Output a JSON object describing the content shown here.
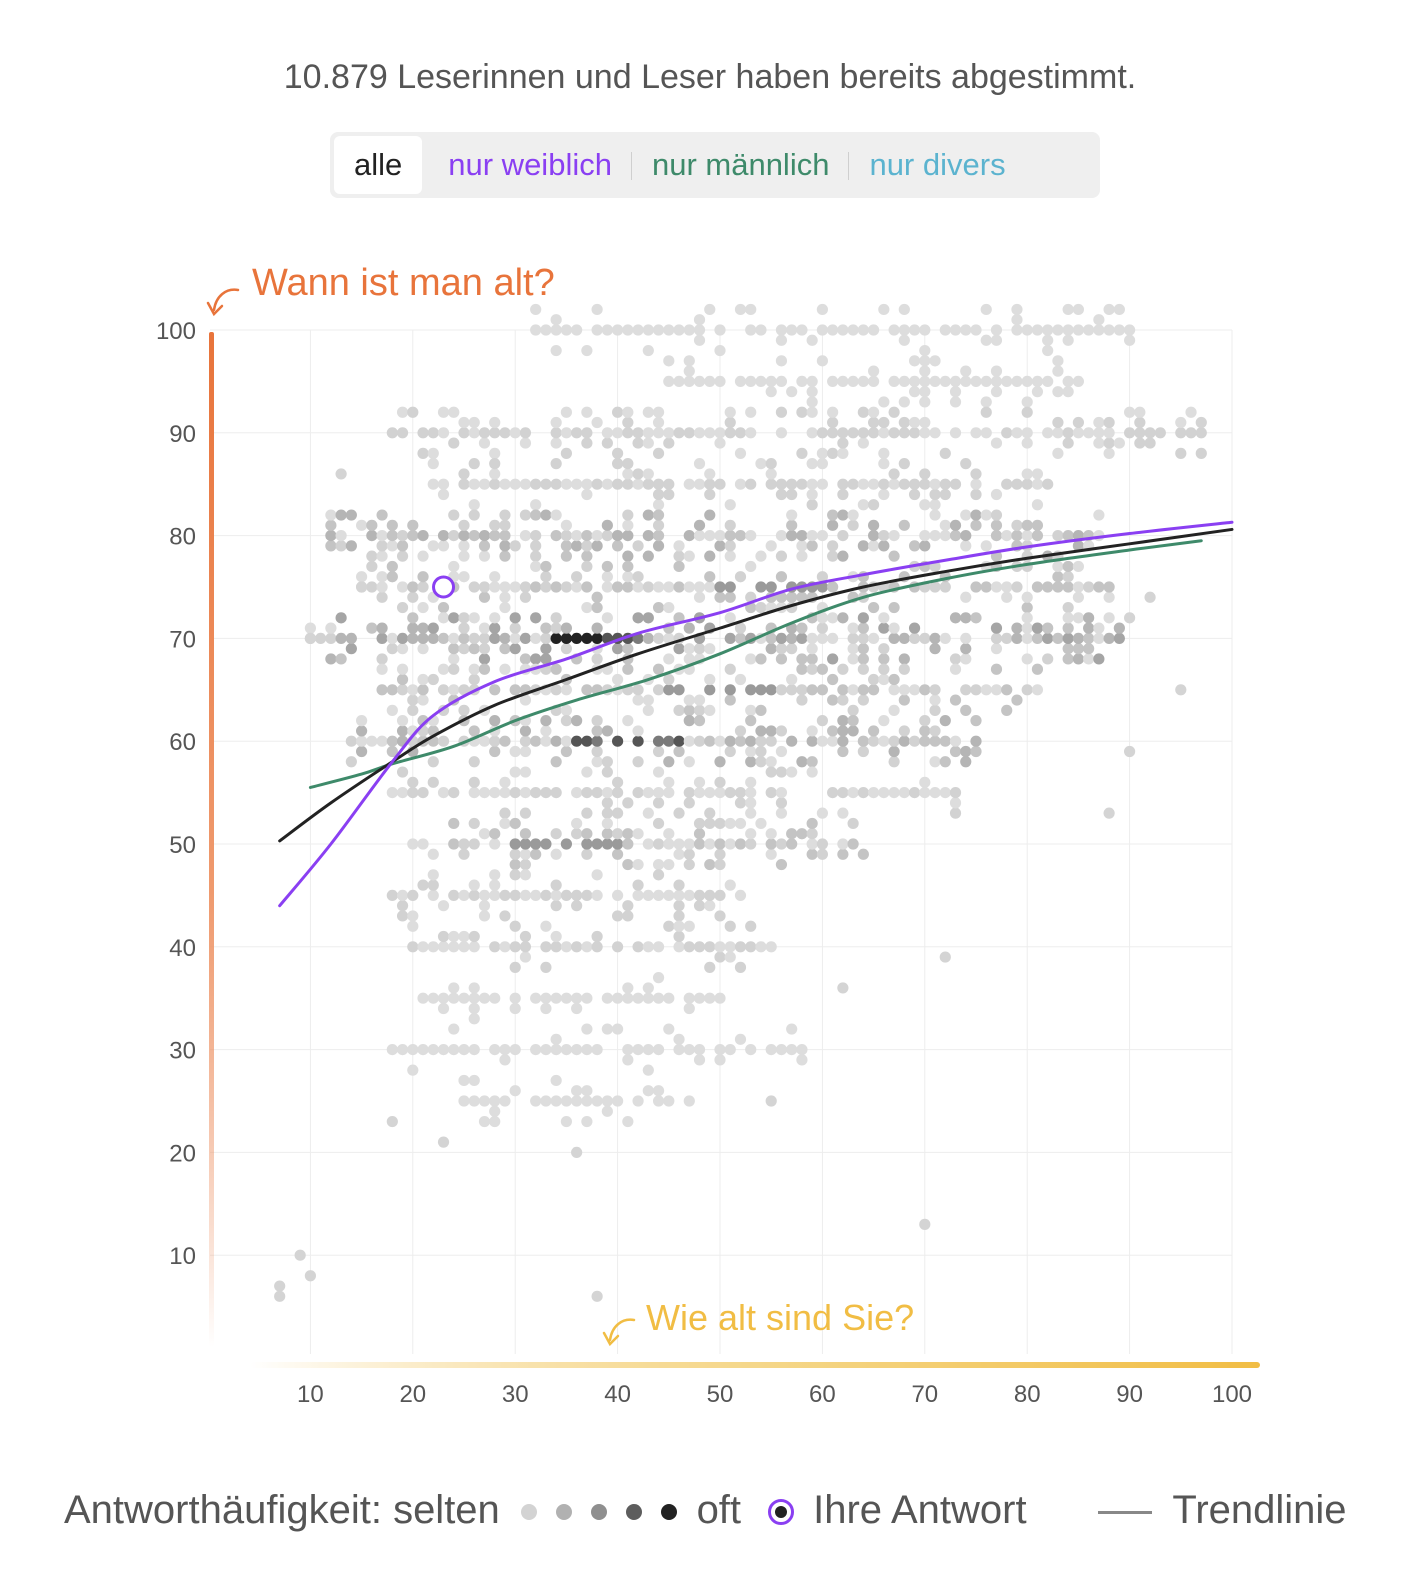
{
  "header": {
    "subtitle": "10.879 Leserinnen und Leser haben bereits abgestimmt."
  },
  "tabs": [
    {
      "label": "alle",
      "color": "#222222",
      "active": true
    },
    {
      "label": "nur weiblich",
      "color": "#8a3ff2",
      "active": false
    },
    {
      "label": "nur männlich",
      "color": "#3e8a6a",
      "active": false
    },
    {
      "label": "nur divers",
      "color": "#5bb3cf",
      "active": false
    }
  ],
  "chart_data": {
    "type": "scatter",
    "y_axis_title": "Wann ist man alt?",
    "x_axis_title": "Wie alt sind Sie?",
    "x_ticks": [
      "10",
      "20",
      "30",
      "40",
      "50",
      "60",
      "70",
      "80",
      "90",
      "100"
    ],
    "y_ticks": [
      "10",
      "20",
      "30",
      "40",
      "50",
      "60",
      "70",
      "80",
      "90",
      "100"
    ],
    "xlim": [
      0,
      100
    ],
    "ylim": [
      0,
      100
    ],
    "grid": true,
    "colors": {
      "y_axis": "#e8743b",
      "x_axis": "#f1bd44",
      "female": "#8a3ff2",
      "male": "#3e8a6a",
      "all": "#222222",
      "points": "#c8c8c8"
    },
    "response_rows": [
      {
        "y": 100,
        "x_from": 32,
        "x_to": 90,
        "level": 0
      },
      {
        "y": 95,
        "x_from": 44,
        "x_to": 86,
        "level": 0
      },
      {
        "y": 90,
        "x_from": 18,
        "x_to": 97,
        "level": 1
      },
      {
        "y": 85,
        "x_from": 22,
        "x_to": 82,
        "level": 1
      },
      {
        "y": 80,
        "x_from": 12,
        "x_to": 87,
        "level": 3
      },
      {
        "y": 75,
        "x_from": 15,
        "x_to": 88,
        "level": 2
      },
      {
        "y": 70,
        "x_from": 10,
        "x_to": 89,
        "level": 4
      },
      {
        "y": 65,
        "x_from": 17,
        "x_to": 81,
        "level": 2
      },
      {
        "y": 60,
        "x_from": 14,
        "x_to": 75,
        "level": 3
      },
      {
        "y": 55,
        "x_from": 18,
        "x_to": 73,
        "level": 1
      },
      {
        "y": 50,
        "x_from": 20,
        "x_to": 64,
        "level": 2
      },
      {
        "y": 45,
        "x_from": 18,
        "x_to": 52,
        "level": 1
      },
      {
        "y": 40,
        "x_from": 20,
        "x_to": 55,
        "level": 1
      },
      {
        "y": 35,
        "x_from": 21,
        "x_to": 50,
        "level": 0
      },
      {
        "y": 30,
        "x_from": 18,
        "x_to": 58,
        "level": 0
      },
      {
        "y": 25,
        "x_from": 25,
        "x_to": 48,
        "level": 0
      }
    ],
    "your_answer": {
      "x": 23,
      "y": 75
    },
    "series": [
      {
        "name": "alle",
        "color": "#222222",
        "x": [
          7,
          12,
          18,
          22,
          28,
          35,
          42,
          50,
          57,
          64,
          72,
          80,
          90,
          100
        ],
        "y": [
          50.3,
          54.0,
          58.0,
          60.5,
          63.5,
          66.0,
          68.5,
          71.0,
          73.2,
          75.0,
          76.5,
          77.8,
          79.2,
          80.6
        ]
      },
      {
        "name": "nur weiblich",
        "color": "#8a3ff2",
        "x": [
          7,
          12,
          18,
          22,
          28,
          35,
          42,
          50,
          57,
          64,
          72,
          80,
          90,
          100
        ],
        "y": [
          44.0,
          50.0,
          58.0,
          62.5,
          65.8,
          68.0,
          70.5,
          72.5,
          74.8,
          76.2,
          77.6,
          78.9,
          80.2,
          81.3
        ]
      },
      {
        "name": "nur männlich",
        "color": "#3e8a6a",
        "x": [
          10,
          15,
          18,
          24,
          30,
          36,
          43,
          50,
          57,
          64,
          72,
          80,
          90,
          97
        ],
        "y": [
          55.5,
          56.8,
          57.8,
          59.5,
          62.0,
          64.0,
          66.0,
          68.5,
          71.5,
          74.0,
          75.8,
          77.2,
          78.6,
          79.5
        ]
      }
    ]
  },
  "legend": {
    "frequency_label": "Antworthäufigkeit: selten",
    "frequency_end": "oft",
    "your_answer_label": "Ihre Antwort",
    "trend_label": "Trendlinie",
    "dot_colors": [
      "#d3d3d3",
      "#b1b1b1",
      "#8f8f8f",
      "#5d5d5d",
      "#222222"
    ]
  }
}
